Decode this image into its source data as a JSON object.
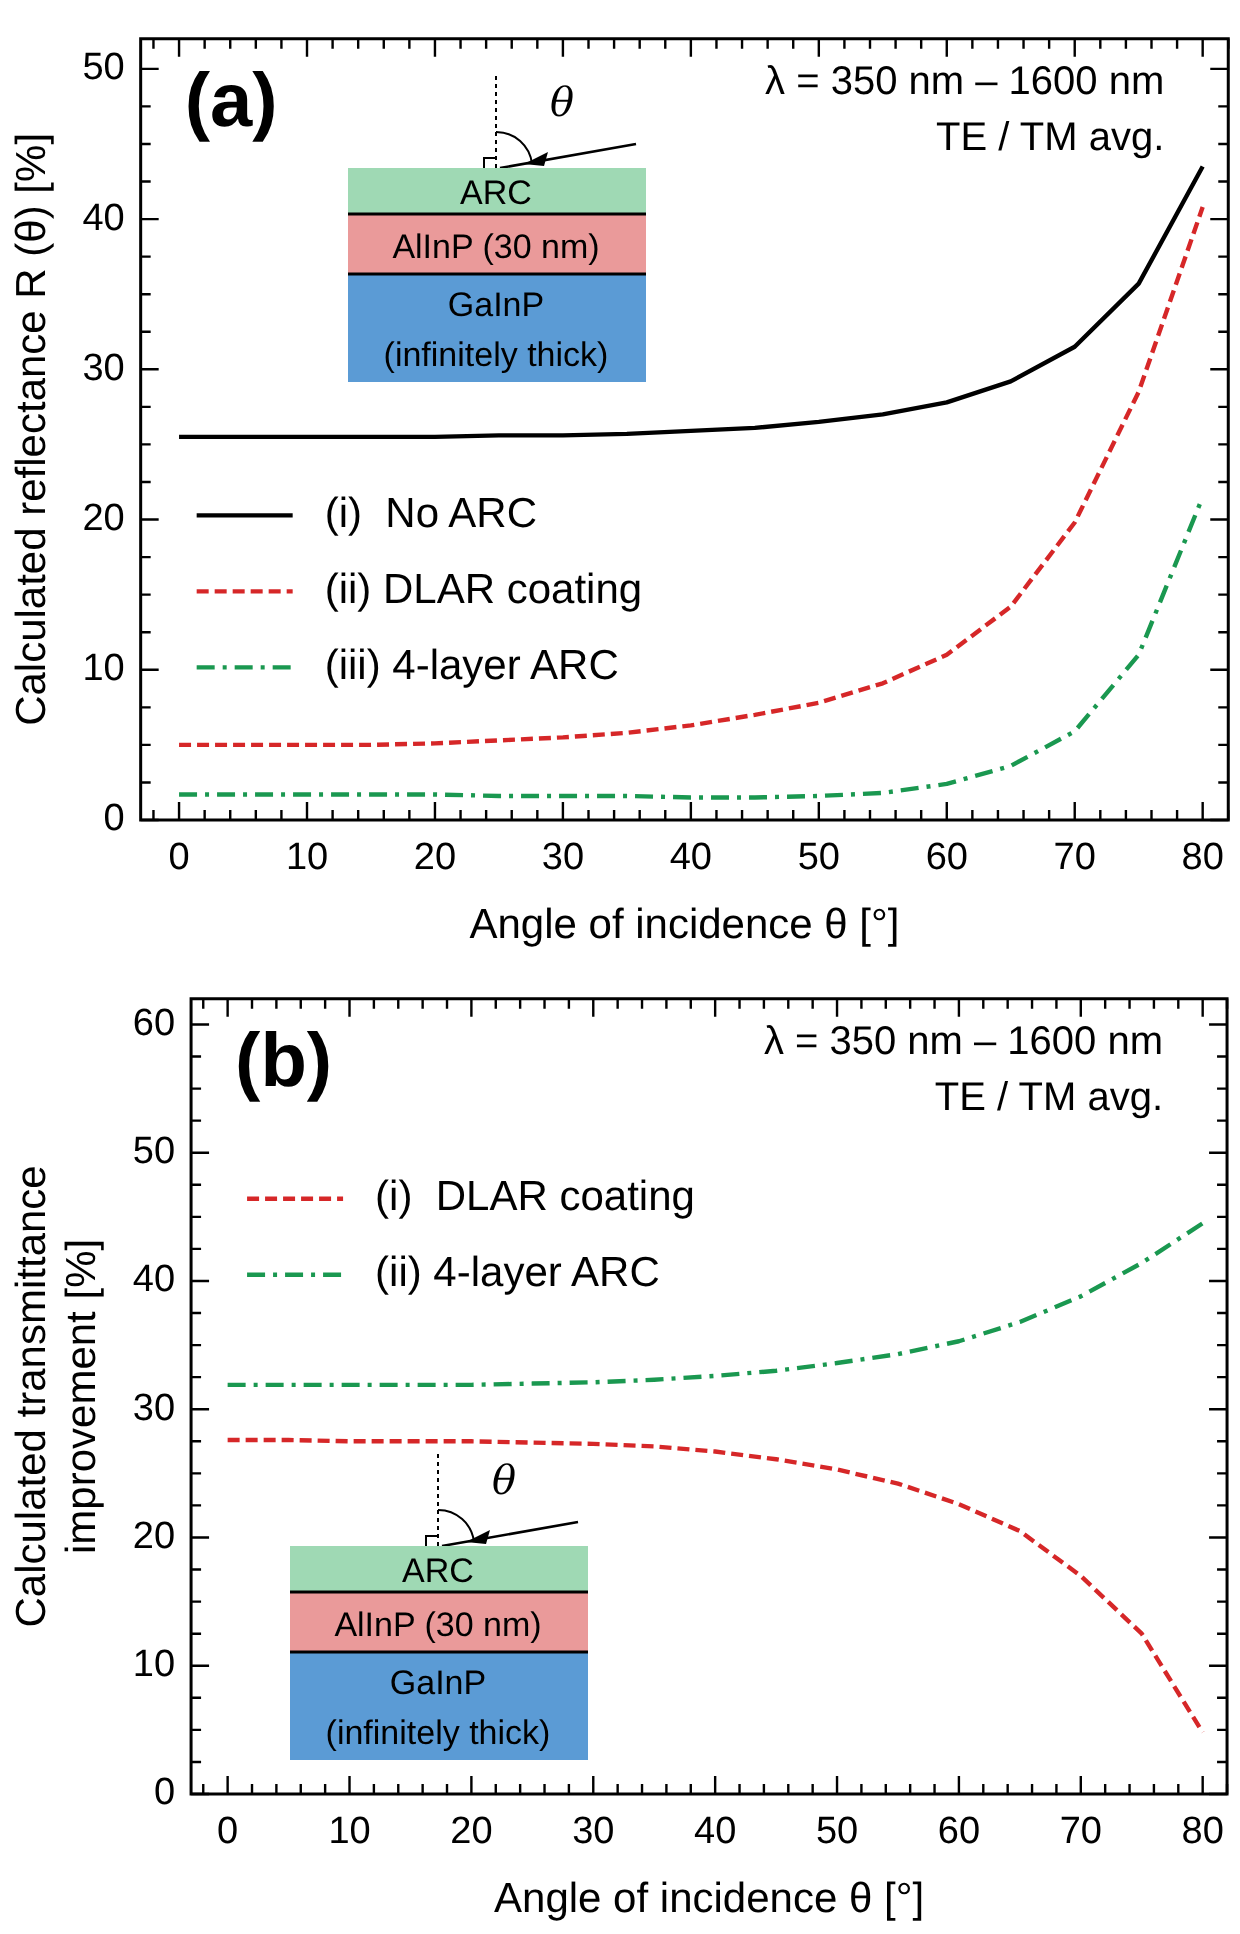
{
  "chart_data": [
    {
      "type": "line",
      "xlabel": "Angle of incidence θ [°]",
      "ylabel": "Calculated reflectance R (θ) [%]",
      "x": [
        0,
        5,
        10,
        15,
        20,
        25,
        30,
        35,
        40,
        45,
        50,
        55,
        60,
        65,
        70,
        75,
        80
      ],
      "xlim": [
        -3,
        82
      ],
      "xticks": [
        0,
        10,
        20,
        30,
        40,
        50,
        60,
        70,
        80
      ],
      "ylim": [
        0,
        52
      ],
      "yticks": [
        0,
        10,
        20,
        30,
        40,
        50
      ],
      "legend": "center left",
      "marker": "none",
      "annotations": [
        "(a)",
        "λ = 350 nm – 1600 nm",
        "TE / TM avg.",
        "ARC",
        "AlInP (30 nm)",
        "GaInP",
        "(infinitely thick)",
        "θ"
      ],
      "series": [
        {
          "name": "(i)  No ARC",
          "color": "#000000",
          "line_style": "solid",
          "values": [
            25.5,
            25.5,
            25.5,
            25.5,
            25.5,
            25.6,
            25.6,
            25.7,
            25.9,
            26.1,
            26.5,
            27.0,
            27.8,
            29.2,
            31.5,
            35.7,
            43.5
          ]
        },
        {
          "name": "(ii) DLAR coating",
          "color": "#d62728",
          "line_style": "dashed",
          "values": [
            5.0,
            5.0,
            5.0,
            5.0,
            5.1,
            5.3,
            5.5,
            5.8,
            6.3,
            7.0,
            7.8,
            9.1,
            11.0,
            14.2,
            19.8,
            28.5,
            40.8
          ]
        },
        {
          "name": "(iii) 4-layer ARC",
          "color": "#1a9850",
          "line_style": "dashdot",
          "values": [
            1.7,
            1.7,
            1.7,
            1.7,
            1.7,
            1.6,
            1.6,
            1.6,
            1.5,
            1.5,
            1.6,
            1.8,
            2.4,
            3.6,
            5.9,
            11.0,
            21.5
          ]
        }
      ]
    },
    {
      "type": "line",
      "xlabel": "Angle of incidence θ [°]",
      "ylabel": "Calculated transmittance\nimprovement [%]",
      "x": [
        0,
        5,
        10,
        15,
        20,
        25,
        30,
        35,
        40,
        45,
        50,
        55,
        60,
        65,
        70,
        75,
        80
      ],
      "xlim": [
        -3,
        82
      ],
      "xticks": [
        0,
        10,
        20,
        30,
        40,
        50,
        60,
        70,
        80
      ],
      "ylim": [
        0,
        62
      ],
      "yticks": [
        0,
        10,
        20,
        30,
        40,
        50,
        60
      ],
      "legend": "top left",
      "marker": "none",
      "annotations": [
        "(b)",
        "λ = 350 nm – 1600 nm",
        "TE / TM avg.",
        "ARC",
        "AlInP (30 nm)",
        "GaInP",
        "(infinitely thick)",
        "θ"
      ],
      "series": [
        {
          "name": "(i)  DLAR coating",
          "color": "#d62728",
          "line_style": "dashed",
          "values": [
            27.6,
            27.6,
            27.5,
            27.5,
            27.5,
            27.4,
            27.3,
            27.1,
            26.7,
            26.1,
            25.3,
            24.2,
            22.6,
            20.5,
            17.0,
            12.5,
            4.8
          ]
        },
        {
          "name": "(ii) 4-layer ARC",
          "color": "#1a9850",
          "line_style": "dashdot",
          "values": [
            31.9,
            31.9,
            31.9,
            31.9,
            31.9,
            32.0,
            32.1,
            32.3,
            32.6,
            33.0,
            33.6,
            34.3,
            35.3,
            36.8,
            38.8,
            41.4,
            44.5
          ]
        }
      ]
    }
  ]
}
